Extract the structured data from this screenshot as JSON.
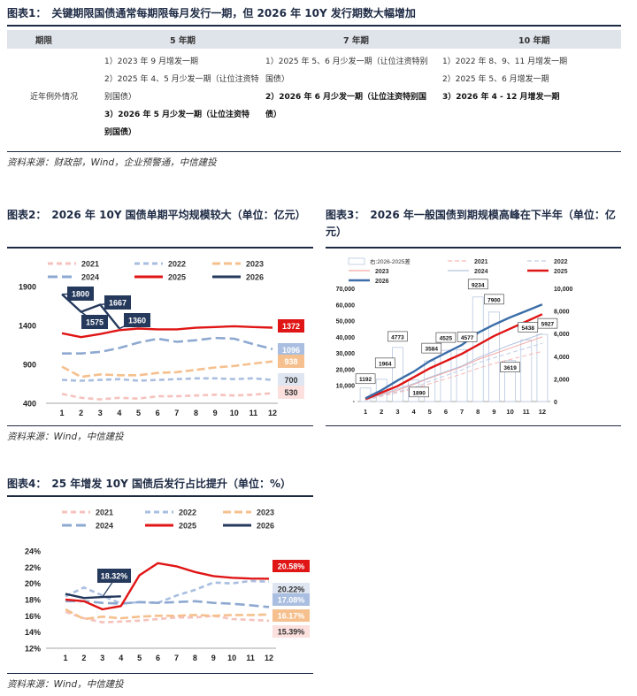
{
  "fig1": {
    "tag": "图表1：",
    "title": "关键期限国债通常每期限每月发行一期，但 2026 年 10Y 发行期数大幅增加",
    "headers": [
      "期限",
      "5 年期",
      "7 年期",
      "10 年期"
    ],
    "row_label": "近年例外情况",
    "col5": [
      {
        "text": "1）2023 年 9 月增发一期",
        "bold": false
      },
      {
        "text": "2）2025 年 4、5 月少发一期（让位注资特",
        "bold": false
      },
      {
        "text": "别国债）",
        "bold": false
      },
      {
        "text": "3）2026 年 5 月少发一期（让位注资特",
        "bold": true
      },
      {
        "text": "别国债）",
        "bold": true
      }
    ],
    "col7": [
      {
        "text": "1）2025 年 5、6 月少发一期（让位注资特别",
        "bold": false
      },
      {
        "text": "国债）",
        "bold": false
      },
      {
        "text": "2）2026 年 6 月少发一期（让位注资特别国",
        "bold": true
      },
      {
        "text": "债）",
        "bold": true
      }
    ],
    "col10": [
      {
        "text": "1）2022 年 8、9、11 月增发一期",
        "bold": false
      },
      {
        "text": "2）2025 年 5、6 月增发一期",
        "bold": false
      },
      {
        "text": "3）2026 年 4 - 12 月增发一期",
        "bold": true
      }
    ],
    "source": "资料来源：财政部，Wind，企业预警通，中信建投"
  },
  "fig2": {
    "tag": "图表2：",
    "title": "2026 年 10Y 国债单期平均规模较大（单位：亿元）",
    "source": "资料来源：Wind，中信建投",
    "chart_data": {
      "type": "line",
      "x": [
        1,
        2,
        3,
        4,
        5,
        6,
        7,
        8,
        9,
        10,
        11,
        12
      ],
      "ylim": [
        400,
        1900
      ],
      "yticks": [
        "400",
        "900",
        "1400",
        "1900"
      ],
      "series": [
        {
          "name": "2021",
          "color": "#f5c2bd",
          "dash": "6,4",
          "values": [
            520,
            470,
            450,
            470,
            460,
            490,
            490,
            500,
            510,
            500,
            510,
            530
          ]
        },
        {
          "name": "2022",
          "color": "#a9bee0",
          "dash": "6,4",
          "values": [
            700,
            690,
            700,
            710,
            690,
            700,
            710,
            720,
            720,
            710,
            720,
            700
          ]
        },
        {
          "name": "2023",
          "color": "#f5c08e",
          "dash": "9,4",
          "values": [
            870,
            740,
            770,
            760,
            760,
            790,
            800,
            830,
            860,
            880,
            910,
            938
          ]
        },
        {
          "name": "2024",
          "color": "#8ea9d1",
          "dash": "11,5",
          "values": [
            1040,
            1040,
            1060,
            1110,
            1180,
            1230,
            1190,
            1210,
            1240,
            1230,
            1160,
            1096
          ]
        },
        {
          "name": "2025",
          "color": "#e01515",
          "dash": "",
          "values": [
            1300,
            1250,
            1290,
            1340,
            1360,
            1350,
            1350,
            1370,
            1380,
            1390,
            1380,
            1372
          ]
        },
        {
          "name": "2026",
          "color": "#24395c",
          "dash": "",
          "values": [
            1800,
            1575,
            1667,
            1360,
            null,
            null,
            null,
            null,
            null,
            null,
            null,
            null
          ]
        }
      ],
      "labels": {
        "callouts": [
          "1800",
          "1575",
          "1667",
          "1360"
        ],
        "end": [
          {
            "text": "1372",
            "bg": "#e01515",
            "color": "#ffffff"
          },
          {
            "text": "1096",
            "bg": "#a9bee0",
            "color": "#ffffff"
          },
          {
            "text": "938",
            "bg": "#f5c08e",
            "color": "#ffffff"
          },
          {
            "text": "700",
            "bg": "#dfe6f1",
            "color": "#333333"
          },
          {
            "text": "530",
            "bg": "#fbe0de",
            "color": "#333333"
          }
        ]
      }
    }
  },
  "fig3": {
    "tag": "图表3：",
    "title": "2026 年一般国债到期规模高峰在下半年（单位：亿元）",
    "source": "",
    "chart_data": {
      "type": "bar",
      "x": [
        1,
        2,
        3,
        4,
        5,
        6,
        7,
        8,
        9,
        10,
        11,
        12
      ],
      "left_ylim": [
        0,
        70000
      ],
      "left_yticks": [
        "10,000",
        "20,000",
        "30,000",
        "40,000",
        "50,000",
        "60,000",
        "70,000"
      ],
      "right_ylim": [
        0,
        10000
      ],
      "right_yticks": [
        "0",
        "2,000",
        "4,000",
        "6,000",
        "8,000",
        "10,000"
      ],
      "bar_series": {
        "name": "右:2026-2025差",
        "values": [
          1192,
          1964,
          4773,
          1890,
          3584,
          4525,
          4577,
          9234,
          7900,
          3619,
          5438,
          5927
        ]
      },
      "series": [
        {
          "name": "2021",
          "color": "#f5b8b3",
          "dash": "5,3",
          "values": [
            800,
            3200,
            5500,
            7800,
            11000,
            14000,
            17000,
            20500,
            23500,
            26000,
            28500,
            31000
          ]
        },
        {
          "name": "2022",
          "color": "#c0cde3",
          "dash": "5,3",
          "values": [
            900,
            3500,
            6200,
            8500,
            12500,
            16000,
            19500,
            24000,
            27000,
            30000,
            33000,
            36000
          ]
        },
        {
          "name": "2023",
          "color": "#f4a9a4",
          "dash": "",
          "values": [
            1200,
            4200,
            7000,
            10500,
            14500,
            18000,
            21500,
            26000,
            29500,
            33000,
            36500,
            40000
          ]
        },
        {
          "name": "2024",
          "color": "#b3c3de",
          "dash": "",
          "values": [
            1300,
            4500,
            7800,
            11000,
            15000,
            18500,
            22000,
            27000,
            31000,
            35000,
            38500,
            42000
          ]
        },
        {
          "name": "2025",
          "color": "#e01515",
          "dash": "",
          "values": [
            1500,
            5500,
            9500,
            15000,
            20500,
            25000,
            29500,
            35000,
            40500,
            45000,
            49500,
            54000
          ]
        },
        {
          "name": "2026",
          "color": "#3c6ea8",
          "dash": "",
          "values": [
            2000,
            7000,
            13000,
            18500,
            25000,
            30000,
            35000,
            42500,
            47500,
            52000,
            56000,
            60000
          ]
        }
      ]
    }
  },
  "fig4": {
    "tag": "图表4：",
    "title": "25 年增发 10Y 国债后发行占比提升（单位：%）",
    "source": "资料来源：Wind，中信建投",
    "chart_data": {
      "type": "line",
      "x": [
        1,
        2,
        3,
        4,
        5,
        6,
        7,
        8,
        9,
        10,
        11,
        12
      ],
      "ylim": [
        12,
        24
      ],
      "yticks": [
        "12%",
        "14%",
        "16%",
        "18%",
        "20%",
        "22%",
        "24%"
      ],
      "series": [
        {
          "name": "2021",
          "color": "#f5c2bd",
          "dash": "6,4",
          "values": [
            16.5,
            15.7,
            15.2,
            15.3,
            15.4,
            15.6,
            15.8,
            15.8,
            16.0,
            15.6,
            15.5,
            15.39
          ]
        },
        {
          "name": "2022",
          "color": "#a9bee0",
          "dash": "6,4",
          "values": [
            18.4,
            19.5,
            18.5,
            17.5,
            17.7,
            17.6,
            18.5,
            19.2,
            20.1,
            20.0,
            20.3,
            20.22
          ]
        },
        {
          "name": "2023",
          "color": "#f5c08e",
          "dash": "9,4",
          "values": [
            16.8,
            15.6,
            15.9,
            15.7,
            15.9,
            16.0,
            16.0,
            16.1,
            16.0,
            16.1,
            16.1,
            16.17
          ]
        },
        {
          "name": "2024",
          "color": "#8ea9d1",
          "dash": "11,5",
          "values": [
            17.8,
            17.8,
            17.6,
            17.5,
            17.7,
            17.6,
            17.7,
            17.8,
            17.6,
            17.5,
            17.3,
            17.08
          ]
        },
        {
          "name": "2025",
          "color": "#e01515",
          "dash": "",
          "values": [
            18.0,
            17.8,
            16.8,
            17.2,
            21.0,
            22.5,
            22.1,
            21.4,
            20.9,
            20.7,
            20.6,
            20.58
          ]
        },
        {
          "name": "2026",
          "color": "#24395c",
          "dash": "",
          "values": [
            18.7,
            18.2,
            18.32,
            18.4,
            null,
            null,
            null,
            null,
            null,
            null,
            null,
            null
          ]
        }
      ],
      "labels": {
        "callout": "18.32%",
        "end": [
          {
            "text": "20.58%",
            "bg": "#e01515",
            "color": "#ffffff"
          },
          {
            "text": "20.22%",
            "bg": "#dfe6f1",
            "color": "#333333"
          },
          {
            "text": "17.08%",
            "bg": "#a9bee0",
            "color": "#ffffff"
          },
          {
            "text": "16.17%",
            "bg": "#f5c08e",
            "color": "#ffffff"
          },
          {
            "text": "15.39%",
            "bg": "#fbe0de",
            "color": "#333333"
          }
        ]
      }
    }
  }
}
